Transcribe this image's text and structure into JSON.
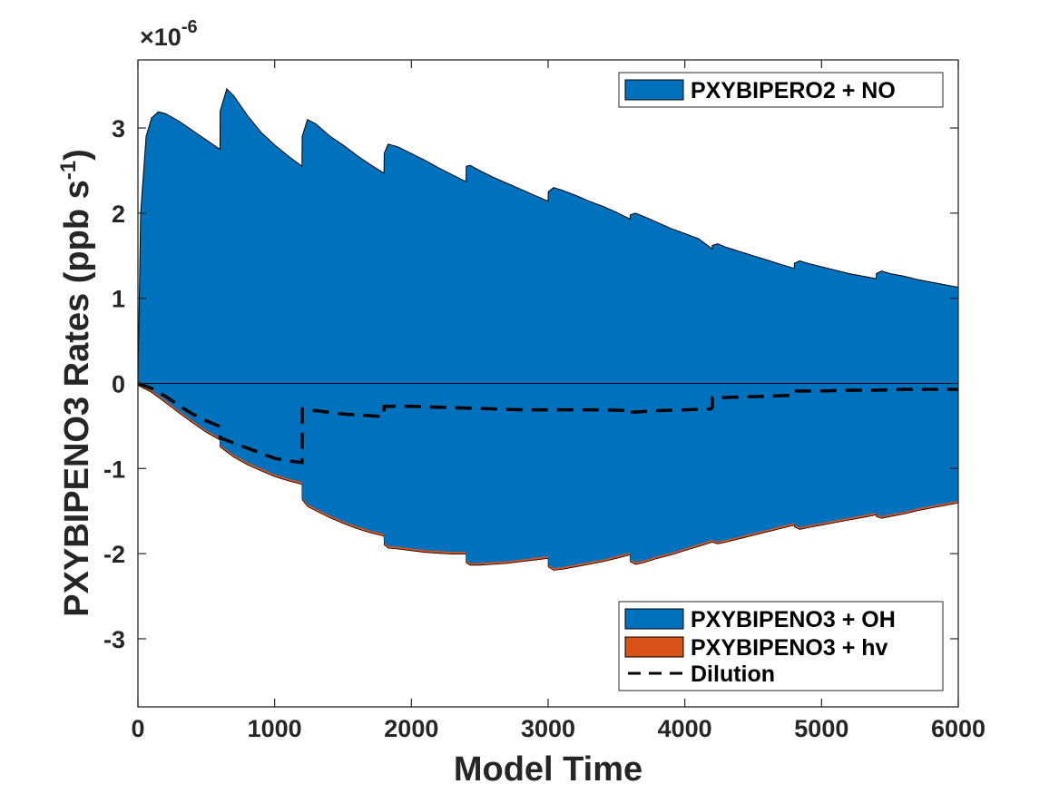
{
  "chart_data": {
    "type": "area",
    "xlabel": "Model Time",
    "ylabel": "PXYBIPENO3 Rates (ppb s",
    "ylabel_sup": "-1",
    "ylabel_close": ")",
    "exponent_label": "×10",
    "exponent_sup": "-6",
    "xlim": [
      0,
      6000
    ],
    "ylim": [
      -3.8,
      3.8
    ],
    "xticks": [
      0,
      1000,
      2000,
      3000,
      4000,
      5000,
      6000
    ],
    "xtick_labels": [
      "0",
      "1000",
      "2000",
      "3000",
      "4000",
      "5000",
      "6000"
    ],
    "yticks": [
      -3,
      -2,
      -1,
      0,
      1,
      2,
      3
    ],
    "ytick_labels": [
      "-3",
      "-2",
      "-1",
      "0",
      "1",
      "2",
      "3"
    ],
    "grid": false,
    "series": [
      {
        "name": "PXYBIPERO2 + NO",
        "kind": "area",
        "color": "#0072BD",
        "x": [
          0,
          20,
          60,
          100,
          150,
          200,
          300,
          400,
          500,
          600,
          601,
          650,
          700,
          800,
          900,
          1000,
          1100,
          1200,
          1201,
          1240,
          1300,
          1400,
          1500,
          1600,
          1700,
          1800,
          1801,
          1830,
          1900,
          2000,
          2100,
          2200,
          2300,
          2400,
          2401,
          2430,
          2500,
          2600,
          2700,
          2800,
          2900,
          3000,
          3001,
          3040,
          3100,
          3200,
          3300,
          3400,
          3500,
          3600,
          3601,
          3640,
          3700,
          3800,
          3900,
          4000,
          4100,
          4200,
          4201,
          4240,
          4300,
          4400,
          4500,
          4600,
          4700,
          4800,
          4801,
          4840,
          4900,
          5000,
          5100,
          5200,
          5300,
          5400,
          5401,
          5440,
          5500,
          5600,
          5700,
          5800,
          5900,
          6000
        ],
        "values": [
          0,
          2.0,
          2.9,
          3.12,
          3.19,
          3.17,
          3.08,
          2.97,
          2.86,
          2.75,
          3.2,
          3.46,
          3.38,
          3.15,
          2.95,
          2.8,
          2.67,
          2.55,
          2.9,
          3.1,
          3.05,
          2.91,
          2.8,
          2.68,
          2.57,
          2.47,
          2.7,
          2.81,
          2.78,
          2.7,
          2.62,
          2.53,
          2.45,
          2.37,
          2.55,
          2.56,
          2.5,
          2.42,
          2.35,
          2.28,
          2.21,
          2.14,
          2.25,
          2.3,
          2.27,
          2.21,
          2.14,
          2.08,
          2.01,
          1.93,
          1.98,
          2.0,
          1.96,
          1.89,
          1.82,
          1.76,
          1.7,
          1.58,
          1.62,
          1.64,
          1.6,
          1.55,
          1.5,
          1.45,
          1.4,
          1.35,
          1.41,
          1.44,
          1.41,
          1.37,
          1.33,
          1.29,
          1.26,
          1.23,
          1.29,
          1.32,
          1.29,
          1.26,
          1.22,
          1.19,
          1.16,
          1.13
        ]
      },
      {
        "name": "PXYBIPENO3 + OH",
        "kind": "area",
        "color": "#0072BD",
        "x": [
          0,
          100,
          200,
          300,
          400,
          500,
          600,
          601,
          650,
          700,
          800,
          900,
          1000,
          1100,
          1200,
          1201,
          1240,
          1300,
          1400,
          1500,
          1600,
          1700,
          1800,
          1801,
          1830,
          1900,
          2000,
          2100,
          2200,
          2300,
          2400,
          2401,
          2430,
          2500,
          2600,
          2700,
          2800,
          2900,
          3000,
          3001,
          3040,
          3100,
          3200,
          3300,
          3400,
          3500,
          3600,
          3601,
          3640,
          3700,
          3800,
          3900,
          4000,
          4100,
          4200,
          4201,
          4240,
          4300,
          4400,
          4500,
          4600,
          4700,
          4800,
          4801,
          4840,
          4900,
          5000,
          5100,
          5200,
          5300,
          5400,
          5401,
          5440,
          5500,
          5600,
          5700,
          5800,
          5900,
          6000
        ],
        "values": [
          0,
          -0.08,
          -0.2,
          -0.32,
          -0.44,
          -0.55,
          -0.64,
          -0.72,
          -0.78,
          -0.84,
          -0.93,
          -1.0,
          -1.07,
          -1.12,
          -1.16,
          -1.34,
          -1.42,
          -1.47,
          -1.55,
          -1.62,
          -1.68,
          -1.73,
          -1.77,
          -1.87,
          -1.91,
          -1.92,
          -1.94,
          -1.96,
          -1.97,
          -1.98,
          -1.98,
          -2.08,
          -2.11,
          -2.11,
          -2.1,
          -2.09,
          -2.07,
          -2.05,
          -2.03,
          -2.13,
          -2.17,
          -2.16,
          -2.13,
          -2.1,
          -2.07,
          -2.03,
          -1.99,
          -2.07,
          -2.1,
          -2.08,
          -2.03,
          -1.99,
          -1.94,
          -1.89,
          -1.84,
          -1.84,
          -1.86,
          -1.84,
          -1.8,
          -1.76,
          -1.72,
          -1.68,
          -1.64,
          -1.66,
          -1.69,
          -1.67,
          -1.64,
          -1.61,
          -1.58,
          -1.55,
          -1.52,
          -1.54,
          -1.56,
          -1.54,
          -1.51,
          -1.47,
          -1.44,
          -1.41,
          -1.38
        ]
      },
      {
        "name": "PXYBIPENO3 + hv",
        "kind": "area",
        "color": "#D95319",
        "thickness": 0.025
      },
      {
        "name": "Dilution",
        "kind": "dashed-line",
        "color": "#000000",
        "x": [
          0,
          100,
          200,
          300,
          400,
          500,
          590,
          600,
          601,
          700,
          800,
          900,
          1000,
          1100,
          1200,
          1201,
          1300,
          1400,
          1500,
          1600,
          1700,
          1790,
          1800,
          1801,
          2000,
          2200,
          2400,
          2600,
          2800,
          3000,
          3200,
          3400,
          3590,
          3600,
          3601,
          3800,
          4000,
          4190,
          4200,
          4201,
          4400,
          4600,
          4790,
          4800,
          4801,
          5000,
          5200,
          5400,
          5600,
          5800,
          6000
        ],
        "values": [
          0,
          -0.06,
          -0.15,
          -0.26,
          -0.36,
          -0.44,
          -0.5,
          -0.52,
          -0.64,
          -0.7,
          -0.76,
          -0.82,
          -0.88,
          -0.91,
          -0.93,
          -0.3,
          -0.32,
          -0.34,
          -0.36,
          -0.37,
          -0.38,
          -0.39,
          -0.38,
          -0.27,
          -0.27,
          -0.28,
          -0.29,
          -0.3,
          -0.31,
          -0.31,
          -0.31,
          -0.31,
          -0.32,
          -0.31,
          -0.34,
          -0.32,
          -0.31,
          -0.3,
          -0.28,
          -0.17,
          -0.16,
          -0.15,
          -0.14,
          -0.13,
          -0.09,
          -0.09,
          -0.08,
          -0.08,
          -0.07,
          -0.07,
          -0.07
        ]
      }
    ],
    "legends": [
      {
        "position": "top-right",
        "entries": [
          "PXYBIPERO2 + NO"
        ]
      },
      {
        "position": "bottom-right",
        "entries": [
          "PXYBIPENO3 + OH",
          "PXYBIPENO3 + hv",
          "Dilution"
        ]
      }
    ]
  }
}
